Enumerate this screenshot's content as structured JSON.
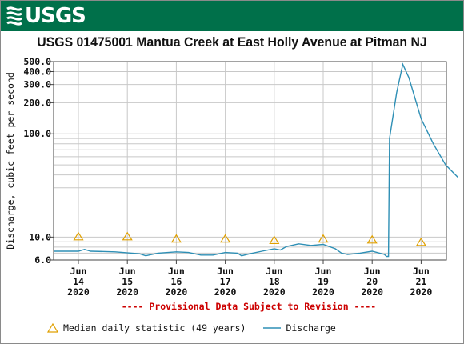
{
  "header": {
    "logo_text": "USGS",
    "logo_icon": "usgs-wave-icon",
    "banner_color": "#00704a"
  },
  "chart_data": {
    "type": "line",
    "title": "USGS 01475001 Mantua Creek at East Holly Avenue at Pitman NJ",
    "ylabel": "Discharge, cubic feet per second",
    "xlabel": "",
    "yscale": "log",
    "ylim": [
      6.0,
      500.0
    ],
    "y_ticks": [
      "500.0",
      "400.0",
      "300.0",
      "200.0",
      "100.0",
      "10.0",
      "6.0"
    ],
    "x_ticks": [
      {
        "month": "Jun",
        "day": "14",
        "year": "2020"
      },
      {
        "month": "Jun",
        "day": "15",
        "year": "2020"
      },
      {
        "month": "Jun",
        "day": "16",
        "year": "2020"
      },
      {
        "month": "Jun",
        "day": "17",
        "year": "2020"
      },
      {
        "month": "Jun",
        "day": "18",
        "year": "2020"
      },
      {
        "month": "Jun",
        "day": "19",
        "year": "2020"
      },
      {
        "month": "Jun",
        "day": "20",
        "year": "2020"
      },
      {
        "month": "Jun",
        "day": "21",
        "year": "2020"
      }
    ],
    "grid": true,
    "annotation": "---- Provisional Data Subject to Revision ----",
    "colors": {
      "discharge": "#2e8fb5",
      "median": "#e0a000",
      "grid": "#c8c8c8",
      "annotation": "#cc0000"
    },
    "series": [
      {
        "name": "Discharge",
        "points": [
          [
            "2020-06-13 12:00",
            7.3
          ],
          [
            "2020-06-14 00:00",
            7.3
          ],
          [
            "2020-06-14 03:00",
            7.6
          ],
          [
            "2020-06-14 06:00",
            7.3
          ],
          [
            "2020-06-14 18:00",
            7.2
          ],
          [
            "2020-06-15 06:00",
            6.9
          ],
          [
            "2020-06-15 09:00",
            6.6
          ],
          [
            "2020-06-15 15:00",
            7.0
          ],
          [
            "2020-06-16 00:00",
            7.2
          ],
          [
            "2020-06-16 06:00",
            7.1
          ],
          [
            "2020-06-16 12:00",
            6.7
          ],
          [
            "2020-06-16 18:00",
            6.7
          ],
          [
            "2020-06-17 00:00",
            7.1
          ],
          [
            "2020-06-17 06:00",
            7.0
          ],
          [
            "2020-06-17 08:00",
            6.6
          ],
          [
            "2020-06-17 12:00",
            6.9
          ],
          [
            "2020-06-17 18:00",
            7.3
          ],
          [
            "2020-06-18 00:00",
            7.7
          ],
          [
            "2020-06-18 03:00",
            7.5
          ],
          [
            "2020-06-18 06:00",
            8.1
          ],
          [
            "2020-06-18 12:00",
            8.6
          ],
          [
            "2020-06-18 18:00",
            8.3
          ],
          [
            "2020-06-19 00:00",
            8.5
          ],
          [
            "2020-06-19 06:00",
            7.7
          ],
          [
            "2020-06-19 09:00",
            7.0
          ],
          [
            "2020-06-19 12:00",
            6.8
          ],
          [
            "2020-06-19 18:00",
            7.0
          ],
          [
            "2020-06-20 00:00",
            7.3
          ],
          [
            "2020-06-20 06:00",
            6.8
          ],
          [
            "2020-06-20 07:00",
            6.5
          ],
          [
            "2020-06-20 08:00",
            6.5
          ],
          [
            "2020-06-20 08:30",
            90.0
          ],
          [
            "2020-06-20 12:00",
            250.0
          ],
          [
            "2020-06-20 15:00",
            470.0
          ],
          [
            "2020-06-20 18:00",
            350.0
          ],
          [
            "2020-06-21 00:00",
            140.0
          ],
          [
            "2020-06-21 06:00",
            80.0
          ],
          [
            "2020-06-21 12:00",
            50.0
          ],
          [
            "2020-06-21 18:00",
            38.0
          ]
        ]
      },
      {
        "name": "Median daily statistic (49 years)",
        "points": [
          [
            "2020-06-14 00:00",
            10.1
          ],
          [
            "2020-06-15 00:00",
            10.1
          ],
          [
            "2020-06-16 00:00",
            9.6
          ],
          [
            "2020-06-17 00:00",
            9.6
          ],
          [
            "2020-06-18 00:00",
            9.3
          ],
          [
            "2020-06-19 00:00",
            9.6
          ],
          [
            "2020-06-20 00:00",
            9.4
          ],
          [
            "2020-06-21 00:00",
            8.9
          ]
        ]
      }
    ]
  },
  "legend": {
    "median_label": "Median daily statistic (49 years)",
    "discharge_label": "Discharge"
  }
}
